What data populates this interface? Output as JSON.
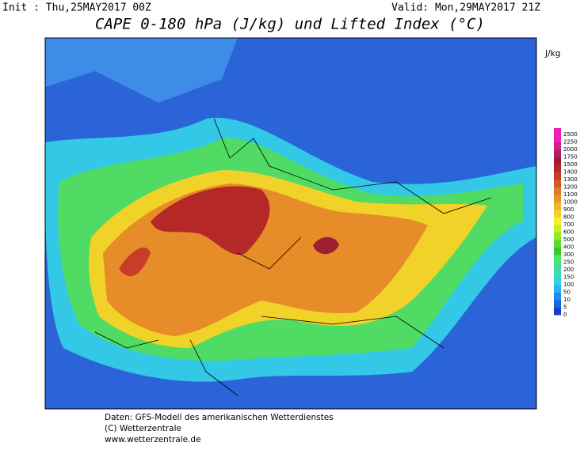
{
  "header": {
    "init": "Init : Thu,25MAY2017 00Z",
    "valid": "Valid: Mon,29MAY2017 21Z",
    "title": "CAPE 0-180 hPa (J/kg) und Lifted Index (°C)"
  },
  "colorbar": {
    "unit": "J/kg",
    "levels": [
      0,
      5,
      10,
      50,
      100,
      150,
      200,
      250,
      300,
      400,
      500,
      600,
      700,
      800,
      900,
      1000,
      1100,
      1200,
      1300,
      1400,
      1500,
      1750,
      2000,
      2250,
      2500
    ],
    "colors": [
      "#1a3ccc",
      "#1e64e6",
      "#1e8cf0",
      "#28b4f0",
      "#32d2e6",
      "#3cdcb4",
      "#46dc8c",
      "#50e664",
      "#32c832",
      "#5adc28",
      "#96e628",
      "#c8f028",
      "#f0f032",
      "#f0d228",
      "#f0b428",
      "#e69628",
      "#dc7828",
      "#d25a28",
      "#c83c28",
      "#b42828",
      "#a01e32",
      "#b41e5a",
      "#d21e8c",
      "#f01eb4"
    ]
  },
  "footer": {
    "lines": [
      "Daten: GFS-Modell des amerikanischen Wetterdienstes",
      "(C) Wetterzentrale",
      "www.wetterzentrale.de"
    ]
  }
}
